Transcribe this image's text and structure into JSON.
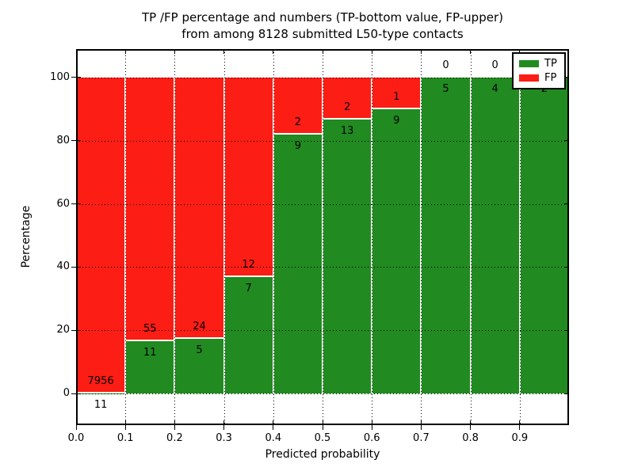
{
  "chart_data": {
    "type": "bar",
    "stacked": true,
    "title_line1": "TP /FP percentage and numbers (TP-bottom value, FP-upper)",
    "title_line2": "from among 8128 submitted L50-type contacts",
    "xlabel": "Predicted probability",
    "ylabel": "Percentage",
    "x_ticks": [
      "0.0",
      "0.1",
      "0.2",
      "0.3",
      "0.4",
      "0.5",
      "0.6",
      "0.7",
      "0.8",
      "0.9"
    ],
    "y_ticks": [
      0,
      20,
      40,
      60,
      80,
      100
    ],
    "xlim": [
      0,
      1
    ],
    "ylim": [
      -10,
      109
    ],
    "grid": "dotted",
    "grid_color": "#000000",
    "background": "#ffffff",
    "colors": {
      "tp": "#218a21",
      "fp": "#fc1d15"
    },
    "legend": {
      "position": "upper-right",
      "entries": [
        {
          "label": "TP",
          "color": "#218a21"
        },
        {
          "label": "FP",
          "color": "#fc1d15"
        }
      ]
    },
    "bars": [
      {
        "range": "0.0-0.1",
        "tp": 11,
        "fp": 7956,
        "tp_pct": 0.14
      },
      {
        "range": "0.1-0.2",
        "tp": 11,
        "fp": 55,
        "tp_pct": 16.67
      },
      {
        "range": "0.2-0.3",
        "tp": 5,
        "fp": 24,
        "tp_pct": 17.24
      },
      {
        "range": "0.3-0.4",
        "tp": 7,
        "fp": 12,
        "tp_pct": 36.84
      },
      {
        "range": "0.4-0.5",
        "tp": 9,
        "fp": 2,
        "tp_pct": 81.82
      },
      {
        "range": "0.5-0.6",
        "tp": 13,
        "fp": 2,
        "tp_pct": 86.67
      },
      {
        "range": "0.6-0.7",
        "tp": 9,
        "fp": 1,
        "tp_pct": 90.0
      },
      {
        "range": "0.7-0.8",
        "tp": 5,
        "fp": 0,
        "tp_pct": 100.0
      },
      {
        "range": "0.8-0.9",
        "tp": 4,
        "fp": 0,
        "tp_pct": 100.0
      },
      {
        "range": "0.9-1.0",
        "tp": 2,
        "fp": 0,
        "tp_pct": 100.0
      }
    ]
  }
}
